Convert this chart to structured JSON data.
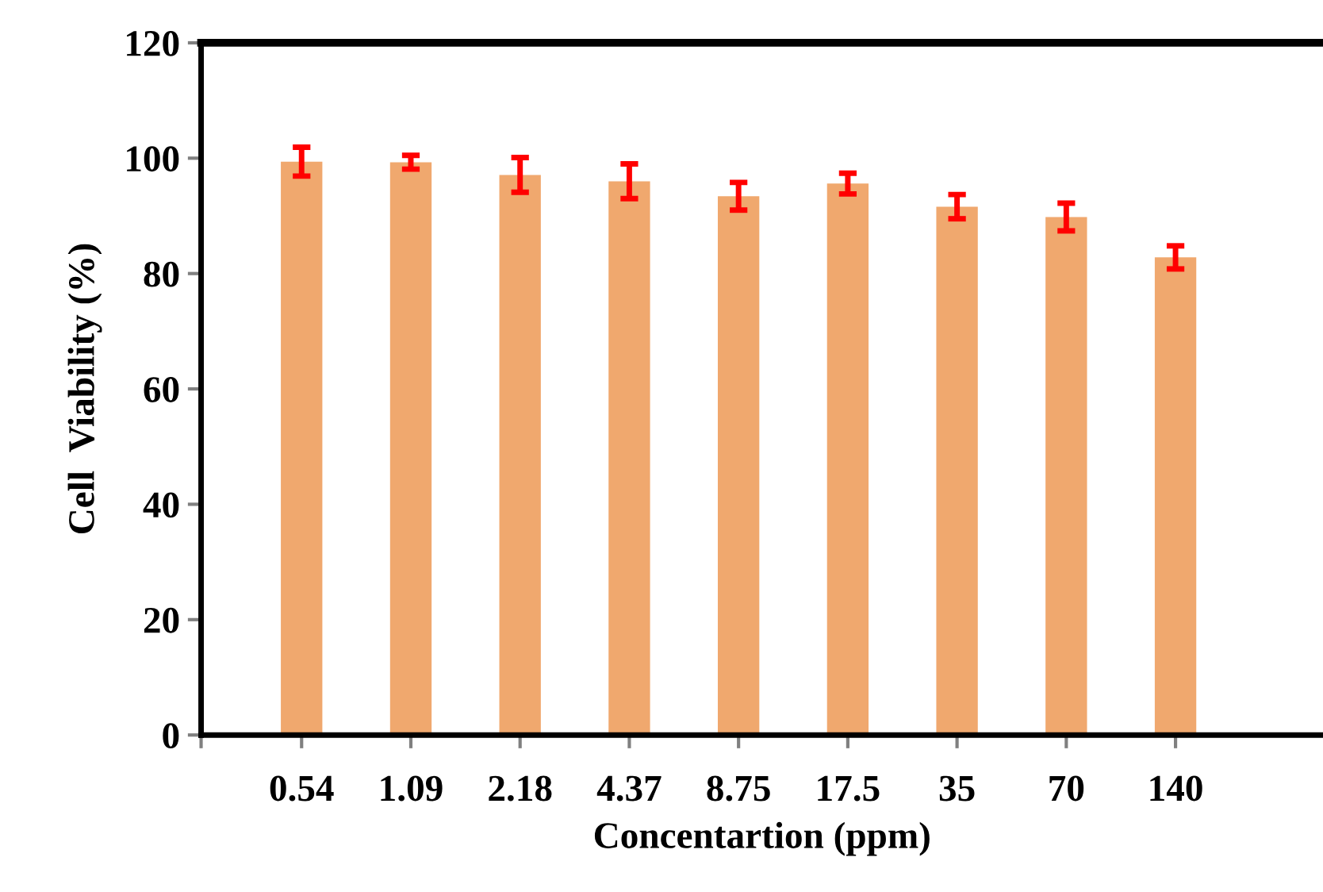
{
  "chart_data": {
    "type": "bar",
    "xlabel": "Concentartion (ppm)",
    "ylabel": "Cell  Viability (%)",
    "categories": [
      "0.54",
      "1.09",
      "2.18",
      "4.37",
      "8.75",
      "17.5",
      "35",
      "70",
      "140"
    ],
    "series": [
      {
        "color": "#f0a86e",
        "values": [
          99.4,
          99.3,
          97.1,
          96.0,
          93.4,
          95.6,
          91.6,
          89.8,
          82.8
        ],
        "errors": [
          2.5,
          1.2,
          3.0,
          3.0,
          2.4,
          1.8,
          2.1,
          2.4,
          2.0
        ]
      }
    ],
    "ylim": [
      0,
      120
    ],
    "yticks": [
      0,
      20,
      40,
      60,
      80,
      100,
      120
    ]
  }
}
